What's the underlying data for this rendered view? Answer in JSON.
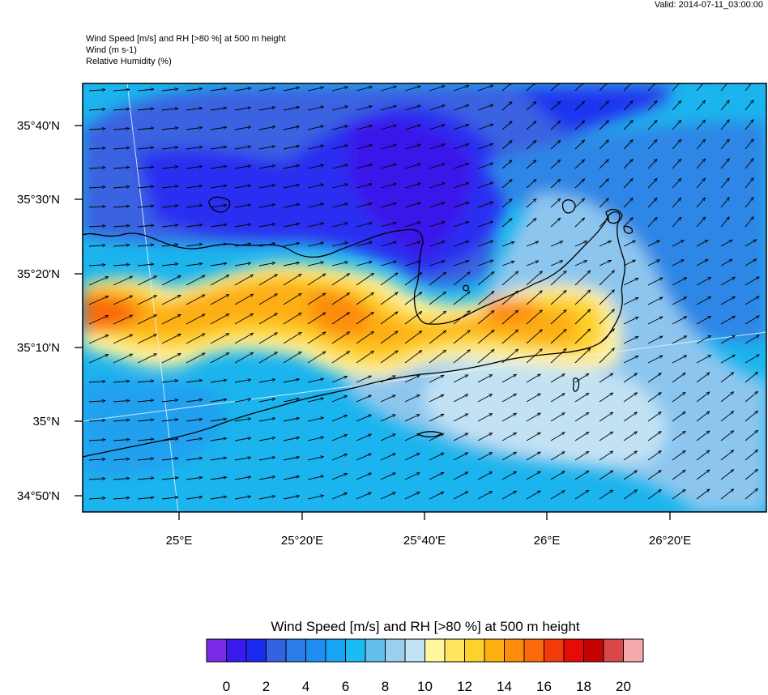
{
  "header": {
    "valid": "Valid: 2014-07-11_03:00:00",
    "title_lines": [
      "Wind Speed [m/s] and RH [>80 %] at 500 m height",
      "Wind   (m s-1)",
      "Relative Humidity   (%)"
    ]
  },
  "map": {
    "lat_labels": [
      "35°40'N",
      "35°30'N",
      "35°20'N",
      "35°10'N",
      "35°N",
      "34°50'N"
    ],
    "lon_labels": [
      "25°E",
      "25°20'E",
      "25°40'E",
      "26°E",
      "26°20'E"
    ],
    "background_color": "#1bb4ee",
    "coastline_color": "#000000"
  },
  "colorbar": {
    "title": "Wind Speed [m/s] and RH [>80 %] at 500 m height",
    "colors": [
      "#7a2be8",
      "#3b19ef",
      "#1a2bef",
      "#3462e3",
      "#2b7de8",
      "#1f8ef0",
      "#17a6f5",
      "#1bbcf3",
      "#63bfee",
      "#9acff0",
      "#c2e4f4",
      "#fff6a0",
      "#ffe560",
      "#fdd22a",
      "#fdaf14",
      "#fd8c0c",
      "#fa6a0a",
      "#f33a0a",
      "#e60a08",
      "#c40404",
      "#d9474a",
      "#f7a8ab"
    ],
    "tick_labels": [
      "0",
      "2",
      "4",
      "6",
      "8",
      "10",
      "12",
      "14",
      "16",
      "18",
      "20"
    ]
  }
}
